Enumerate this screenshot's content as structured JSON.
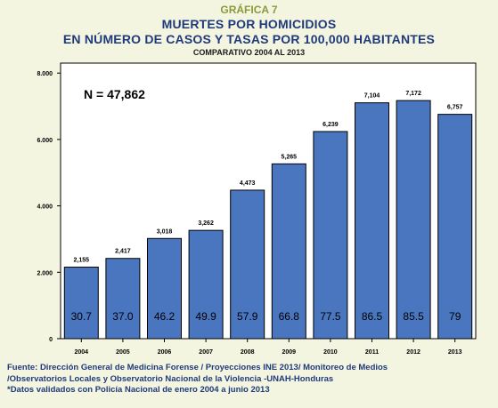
{
  "header": {
    "label": "GRÁFICA 7",
    "title_line1": "MUERTES POR HOMICIDIOS",
    "title_line2": "EN NÚMERO DE CASOS Y TASAS POR 100,000 HABITANTES",
    "subtitle": "COMPARATIVO 2004 AL 2013"
  },
  "chart_data": {
    "type": "bar",
    "annotation": "N = 47,862",
    "categories": [
      "2004",
      "2005",
      "2006",
      "2007",
      "2008",
      "2009",
      "2010",
      "2011",
      "2012",
      "2013"
    ],
    "values": [
      2155,
      2417,
      3018,
      3262,
      4473,
      5265,
      6239,
      7104,
      7172,
      6757
    ],
    "value_labels": [
      "2,155",
      "2,417",
      "3,018",
      "3,262",
      "4,473",
      "5,265",
      "6,239",
      "7,104",
      "7,172",
      "6,757"
    ],
    "rate_labels": [
      "30.7",
      "37.0",
      "46.2",
      "49.9",
      "57.9",
      "66.8",
      "77.5",
      "86.5",
      "85.5",
      "79"
    ],
    "y_ticks": [
      0,
      2000,
      4000,
      6000,
      8000
    ],
    "y_tick_labels": [
      "0",
      "2.000",
      "4.000",
      "6.000",
      "8.000"
    ],
    "ylim": [
      0,
      8300
    ],
    "grid": false,
    "bar_color": "#4a76c0",
    "plot_bg": "#ffffff"
  },
  "footer": {
    "line1": "Fuente: Dirección General de Medicina Forense / Proyecciones INE 2013/ Monitoreo de Medios",
    "line2": "/Observatorios Locales y Observatorio Nacional de la Violencia -UNAH-Honduras",
    "line3": "*Datos validados con Policía Nacional de enero 2004 a junio 2013"
  }
}
